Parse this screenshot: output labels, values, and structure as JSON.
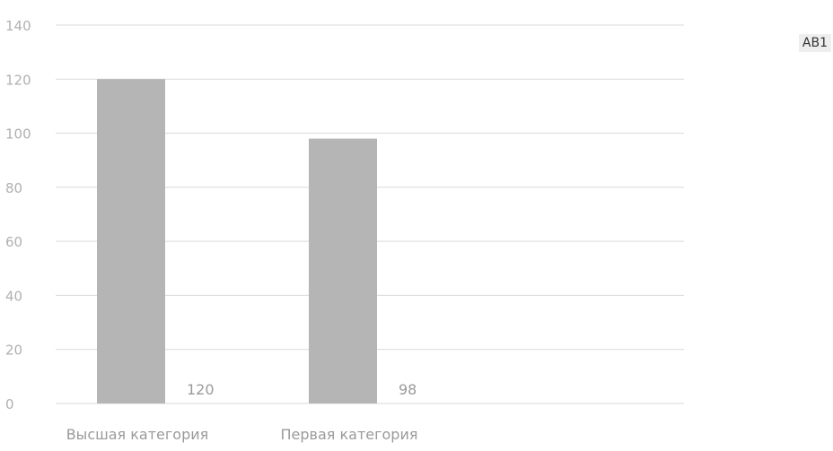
{
  "chart_data": {
    "type": "bar",
    "categories": [
      "Высшая категория",
      "Первая категория"
    ],
    "series": [
      {
        "name": "АВ1",
        "values": [
          120,
          98
        ]
      }
    ],
    "ylim": [
      0,
      140
    ],
    "yticks": [
      0,
      20,
      40,
      60,
      80,
      100,
      120,
      140
    ],
    "ytick_labels": [
      "0",
      "20",
      "40",
      "60",
      "80",
      "100",
      "120",
      "140"
    ],
    "data_labels": [
      "120",
      "98"
    ],
    "grid": true,
    "legend": "top-right",
    "colors": {
      "bar": "#b5b5b5",
      "grid": "#d9d9d9",
      "tick_text": "#b0b0b0",
      "label_text": "#9a9a9a"
    }
  }
}
